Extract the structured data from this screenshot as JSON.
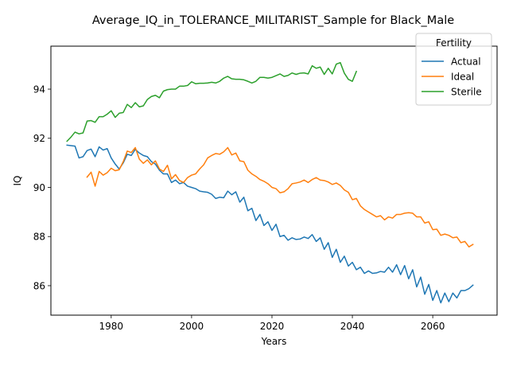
{
  "chart_data": {
    "type": "line",
    "title": "Average_IQ_in_TOLERANCE_MILITARIST_Sample for Black_Male",
    "xlabel": "Years",
    "ylabel": "IQ",
    "xlim": [
      1965,
      2076
    ],
    "ylim": [
      84.8,
      95.75
    ],
    "xticks": [
      1980,
      2000,
      2020,
      2040,
      2060
    ],
    "yticks": [
      86,
      88,
      90,
      92,
      94
    ],
    "grid": false,
    "legend": {
      "title": "Fertility",
      "position": "top-right"
    },
    "series": [
      {
        "name": "Actual",
        "color": "#1f77b4",
        "x": [
          1969,
          1970,
          1971,
          1972,
          1973,
          1974,
          1975,
          1976,
          1977,
          1978,
          1979,
          1980,
          1981,
          1982,
          1983,
          1984,
          1985,
          1986,
          1987,
          1988,
          1989,
          1990,
          1991,
          1992,
          1993,
          1994,
          1995,
          1996,
          1997,
          1998,
          1999,
          2000,
          2001,
          2002,
          2003,
          2004,
          2005,
          2006,
          2007,
          2008,
          2009,
          2010,
          2011,
          2012,
          2013,
          2014,
          2015,
          2016,
          2017,
          2018,
          2019,
          2020,
          2021,
          2022,
          2023,
          2024,
          2025,
          2026,
          2027,
          2028,
          2029,
          2030,
          2031,
          2032,
          2033,
          2034,
          2035,
          2036,
          2037,
          2038,
          2039,
          2040,
          2041,
          2042,
          2043,
          2044,
          2045,
          2046,
          2047,
          2048,
          2049,
          2050,
          2051,
          2052,
          2053,
          2054,
          2055,
          2056,
          2057,
          2058,
          2059,
          2060,
          2061,
          2062,
          2063,
          2064,
          2065,
          2066,
          2067,
          2068,
          2069,
          2070
        ],
        "y": [
          91.72,
          91.7,
          91.68,
          91.2,
          91.25,
          91.5,
          91.56,
          91.25,
          91.65,
          91.52,
          91.58,
          91.2,
          90.95,
          90.75,
          91.0,
          91.35,
          91.3,
          91.55,
          91.4,
          91.3,
          91.25,
          91.05,
          90.95,
          90.7,
          90.55,
          90.55,
          90.2,
          90.3,
          90.15,
          90.2,
          90.05,
          90.0,
          89.95,
          89.85,
          89.82,
          89.8,
          89.72,
          89.55,
          89.6,
          89.58,
          89.85,
          89.7,
          89.82,
          89.4,
          89.6,
          89.05,
          89.15,
          88.65,
          88.9,
          88.45,
          88.6,
          88.25,
          88.5,
          88.0,
          88.05,
          87.85,
          87.95,
          87.88,
          87.9,
          87.98,
          87.92,
          88.08,
          87.8,
          87.95,
          87.48,
          87.75,
          87.15,
          87.48,
          86.95,
          87.2,
          86.8,
          86.95,
          86.65,
          86.75,
          86.5,
          86.6,
          86.5,
          86.52,
          86.58,
          86.55,
          86.75,
          86.55,
          86.85,
          86.45,
          86.82,
          86.28,
          86.65,
          85.95,
          86.35,
          85.65,
          86.05,
          85.4,
          85.8,
          85.3,
          85.7,
          85.35,
          85.7,
          85.5,
          85.8,
          85.8,
          85.88,
          86.02
        ]
      },
      {
        "name": "Ideal",
        "color": "#ff7f0e",
        "x": [
          1974,
          1975,
          1976,
          1977,
          1978,
          1979,
          1980,
          1981,
          1982,
          1983,
          1984,
          1985,
          1986,
          1987,
          1988,
          1989,
          1990,
          1991,
          1992,
          1993,
          1994,
          1995,
          1996,
          1997,
          1998,
          1999,
          2000,
          2001,
          2002,
          2003,
          2004,
          2005,
          2006,
          2007,
          2008,
          2009,
          2010,
          2011,
          2012,
          2013,
          2014,
          2015,
          2016,
          2017,
          2018,
          2019,
          2020,
          2021,
          2022,
          2023,
          2024,
          2025,
          2026,
          2027,
          2028,
          2029,
          2030,
          2031,
          2032,
          2033,
          2034,
          2035,
          2036,
          2037,
          2038,
          2039,
          2040,
          2041,
          2042,
          2043,
          2044,
          2045,
          2046,
          2047,
          2048,
          2049,
          2050,
          2051,
          2052,
          2053,
          2054,
          2055,
          2056,
          2057,
          2058,
          2059,
          2060,
          2061,
          2062,
          2063,
          2064,
          2065,
          2066,
          2067,
          2068,
          2069,
          2070
        ],
        "y": [
          90.42,
          90.62,
          90.05,
          90.65,
          90.5,
          90.6,
          90.78,
          90.68,
          90.72,
          91.05,
          91.48,
          91.42,
          91.62,
          91.15,
          90.98,
          91.12,
          90.92,
          91.08,
          90.75,
          90.65,
          90.9,
          90.35,
          90.52,
          90.28,
          90.2,
          90.4,
          90.5,
          90.55,
          90.75,
          90.92,
          91.2,
          91.3,
          91.38,
          91.35,
          91.45,
          91.62,
          91.32,
          91.4,
          91.08,
          91.05,
          90.7,
          90.55,
          90.45,
          90.32,
          90.25,
          90.15,
          90.0,
          89.95,
          89.78,
          89.82,
          89.95,
          90.15,
          90.18,
          90.22,
          90.3,
          90.2,
          90.32,
          90.4,
          90.3,
          90.28,
          90.22,
          90.12,
          90.18,
          90.08,
          89.9,
          89.8,
          89.5,
          89.55,
          89.25,
          89.1,
          89.0,
          88.9,
          88.8,
          88.85,
          88.68,
          88.8,
          88.75,
          88.9,
          88.9,
          88.95,
          88.97,
          88.95,
          88.8,
          88.8,
          88.55,
          88.6,
          88.28,
          88.3,
          88.05,
          88.1,
          88.05,
          87.95,
          87.98,
          87.75,
          87.8,
          87.58,
          87.68
        ]
      },
      {
        "name": "Sterile",
        "color": "#2ca02c",
        "x": [
          1969,
          1970,
          1971,
          1972,
          1973,
          1974,
          1975,
          1976,
          1977,
          1978,
          1979,
          1980,
          1981,
          1982,
          1983,
          1984,
          1985,
          1986,
          1987,
          1988,
          1989,
          1990,
          1991,
          1992,
          1993,
          1994,
          1995,
          1996,
          1997,
          1998,
          1999,
          2000,
          2001,
          2002,
          2003,
          2004,
          2005,
          2006,
          2007,
          2008,
          2009,
          2010,
          2011,
          2012,
          2013,
          2014,
          2015,
          2016,
          2017,
          2018,
          2019,
          2020,
          2021,
          2022,
          2023,
          2024,
          2025,
          2026,
          2027,
          2028,
          2029,
          2030,
          2031,
          2032,
          2033,
          2034,
          2035,
          2036,
          2037,
          2038,
          2039,
          2040,
          2041
        ],
        "y": [
          91.88,
          92.05,
          92.25,
          92.18,
          92.22,
          92.7,
          92.72,
          92.65,
          92.88,
          92.88,
          92.98,
          93.12,
          92.85,
          93.02,
          93.05,
          93.38,
          93.25,
          93.45,
          93.28,
          93.32,
          93.58,
          93.7,
          93.75,
          93.65,
          93.92,
          93.98,
          94.0,
          94.0,
          94.12,
          94.12,
          94.15,
          94.3,
          94.22,
          94.24,
          94.24,
          94.25,
          94.28,
          94.25,
          94.32,
          94.45,
          94.52,
          94.42,
          94.4,
          94.4,
          94.38,
          94.32,
          94.25,
          94.32,
          94.48,
          94.48,
          94.45,
          94.48,
          94.55,
          94.62,
          94.52,
          94.56,
          94.66,
          94.6,
          94.65,
          94.66,
          94.62,
          94.95,
          94.85,
          94.9,
          94.6,
          94.85,
          94.62,
          95.02,
          95.08,
          94.65,
          94.4,
          94.32,
          94.72
        ]
      }
    ]
  }
}
